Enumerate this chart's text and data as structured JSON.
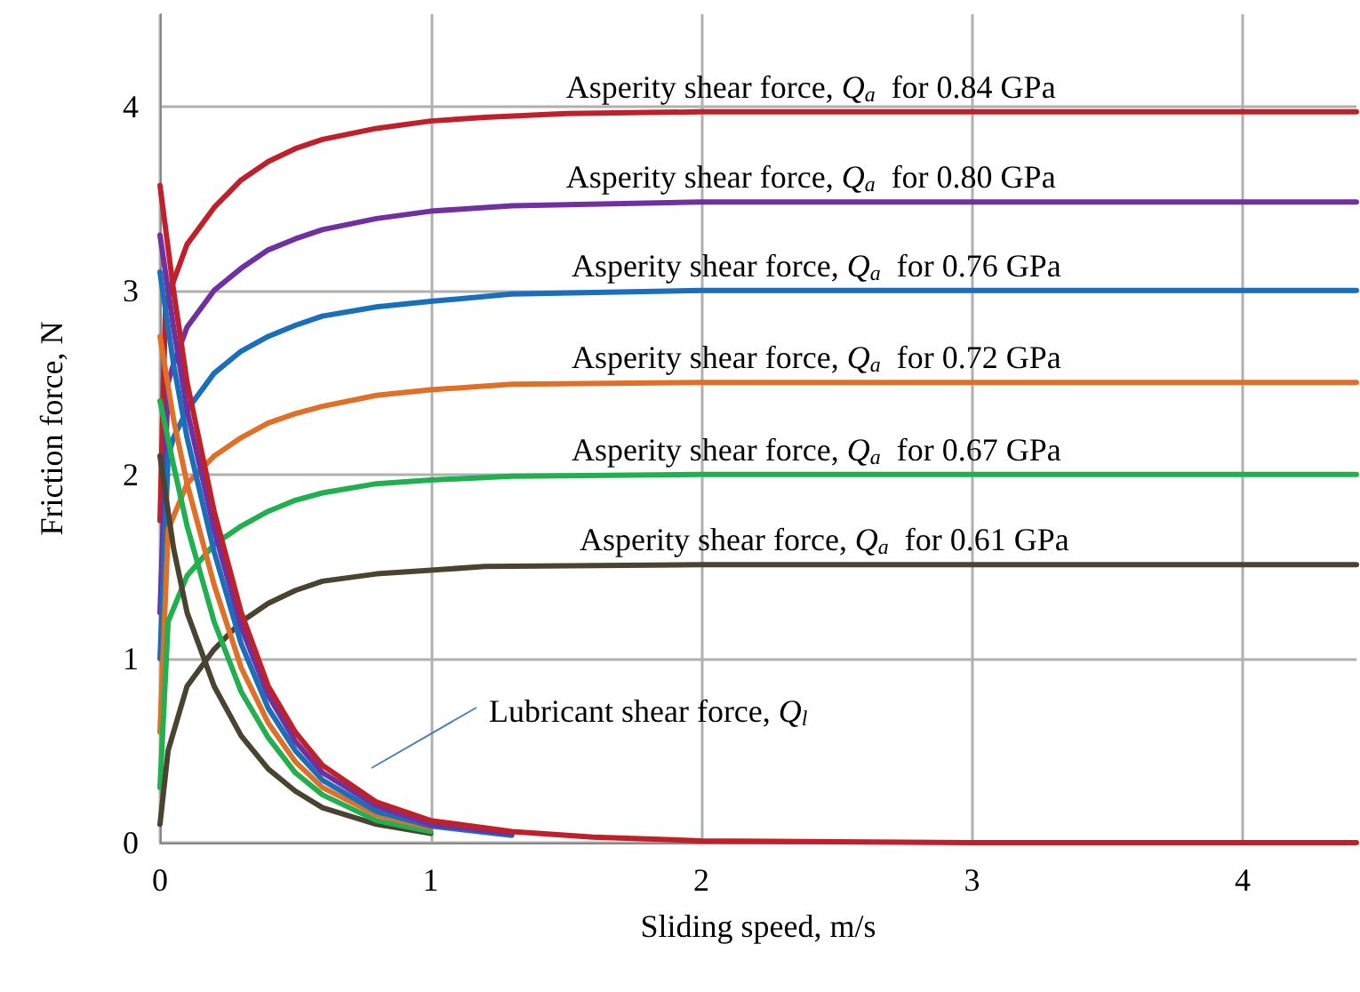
{
  "chart_data": {
    "type": "line",
    "xlabel": "Sliding speed, m/s",
    "ylabel": "Friction force, N",
    "xlim": [
      0,
      4.42
    ],
    "ylim": [
      0,
      4.5
    ],
    "xticks": [
      0,
      1,
      2,
      3,
      4
    ],
    "yticks": [
      0,
      1,
      2,
      3,
      4
    ],
    "grid": true,
    "marker": "none",
    "line_style": "solid",
    "series": [
      {
        "color": "#c0202a",
        "x": [
          0,
          0.02,
          0.05,
          0.1,
          0.2,
          0.3,
          0.4,
          0.5,
          0.6,
          0.8,
          1.0,
          1.2,
          1.5,
          2,
          3,
          4.42
        ],
        "values": [
          1.75,
          2.9,
          3.05,
          3.25,
          3.45,
          3.6,
          3.7,
          3.77,
          3.82,
          3.88,
          3.92,
          3.94,
          3.96,
          3.97,
          3.97,
          3.97
        ]
      },
      {
        "color": "#7030a0",
        "x": [
          0,
          0.03,
          0.05,
          0.1,
          0.2,
          0.3,
          0.4,
          0.5,
          0.6,
          0.8,
          1.0,
          1.3,
          2,
          4.42
        ],
        "values": [
          1.25,
          2.5,
          2.6,
          2.8,
          3.0,
          3.12,
          3.22,
          3.28,
          3.33,
          3.39,
          3.43,
          3.46,
          3.48,
          3.48
        ]
      },
      {
        "color": "#1a6fba",
        "x": [
          0,
          0.03,
          0.05,
          0.1,
          0.2,
          0.3,
          0.4,
          0.5,
          0.6,
          0.8,
          1.0,
          1.3,
          2,
          4.42
        ],
        "values": [
          1.0,
          2.1,
          2.2,
          2.35,
          2.55,
          2.67,
          2.75,
          2.81,
          2.86,
          2.91,
          2.94,
          2.98,
          3.0,
          3.0
        ]
      },
      {
        "color": "#e07028",
        "x": [
          0,
          0.03,
          0.1,
          0.2,
          0.3,
          0.4,
          0.5,
          0.6,
          0.8,
          1.0,
          1.3,
          2,
          4.42
        ],
        "values": [
          0.6,
          1.7,
          1.95,
          2.1,
          2.2,
          2.28,
          2.33,
          2.37,
          2.43,
          2.46,
          2.49,
          2.5,
          2.5
        ]
      },
      {
        "color": "#20b050",
        "x": [
          0,
          0.03,
          0.1,
          0.2,
          0.3,
          0.4,
          0.5,
          0.6,
          0.8,
          1.0,
          1.3,
          2,
          4.42
        ],
        "values": [
          0.3,
          1.2,
          1.45,
          1.62,
          1.72,
          1.8,
          1.86,
          1.9,
          1.95,
          1.97,
          1.99,
          2.0,
          2.0
        ]
      },
      {
        "color": "#4a4330",
        "x": [
          0,
          0.03,
          0.1,
          0.2,
          0.3,
          0.4,
          0.5,
          0.6,
          0.8,
          1.0,
          1.2,
          2,
          4.42
        ],
        "values": [
          0.1,
          0.5,
          0.85,
          1.05,
          1.2,
          1.3,
          1.37,
          1.42,
          1.46,
          1.48,
          1.5,
          1.51,
          1.51
        ]
      },
      {
        "color": "#c0202a",
        "x": [
          0,
          0.05,
          0.1,
          0.2,
          0.3,
          0.4,
          0.5,
          0.6,
          0.8,
          1.0,
          1.3,
          1.6,
          2,
          3,
          4.42
        ],
        "values": [
          3.57,
          3.0,
          2.5,
          1.8,
          1.25,
          0.85,
          0.6,
          0.42,
          0.22,
          0.12,
          0.06,
          0.03,
          0.01,
          0,
          0
        ]
      },
      {
        "color": "#7030a0",
        "x": [
          0,
          0.05,
          0.1,
          0.2,
          0.3,
          0.4,
          0.5,
          0.6,
          0.8,
          1.0,
          1.3
        ],
        "values": [
          3.3,
          2.8,
          2.35,
          1.7,
          1.17,
          0.8,
          0.55,
          0.38,
          0.2,
          0.1,
          0.05
        ]
      },
      {
        "color": "#1a6fba",
        "x": [
          0,
          0.05,
          0.1,
          0.2,
          0.3,
          0.4,
          0.5,
          0.6,
          0.8,
          1.0,
          1.3
        ],
        "values": [
          3.1,
          2.6,
          2.2,
          1.58,
          1.08,
          0.73,
          0.5,
          0.34,
          0.17,
          0.09,
          0.04
        ]
      },
      {
        "color": "#e07028",
        "x": [
          0,
          0.05,
          0.1,
          0.2,
          0.3,
          0.4,
          0.5,
          0.6,
          0.8,
          1.0
        ],
        "values": [
          2.75,
          2.3,
          1.95,
          1.4,
          0.95,
          0.65,
          0.44,
          0.3,
          0.15,
          0.08
        ]
      },
      {
        "color": "#20b050",
        "x": [
          0,
          0.05,
          0.1,
          0.2,
          0.3,
          0.4,
          0.5,
          0.6,
          0.8,
          1.0
        ],
        "values": [
          2.4,
          2.05,
          1.72,
          1.2,
          0.82,
          0.57,
          0.38,
          0.26,
          0.12,
          0.06
        ]
      },
      {
        "color": "#4a4330",
        "x": [
          0,
          0.05,
          0.1,
          0.2,
          0.3,
          0.4,
          0.5,
          0.6,
          0.8,
          1.0
        ],
        "values": [
          2.1,
          1.6,
          1.25,
          0.85,
          0.58,
          0.4,
          0.28,
          0.19,
          0.1,
          0.05
        ]
      }
    ],
    "annotations": [
      {
        "text": "Asperity shear force, Q$_{a}$  for 0.84 GPa",
        "x": 1.5,
        "y": 3.97
      },
      {
        "text": "Asperity shear force, Q$_{a}$  for 0.80 GPa",
        "x": 1.5,
        "y": 3.48
      },
      {
        "text": "Asperity shear force, Q$_{a}$  for 0.76 GPa",
        "x": 1.52,
        "y": 3.0
      },
      {
        "text": "Asperity shear force, Q$_{a}$  for 0.72 GPa",
        "x": 1.52,
        "y": 2.5
      },
      {
        "text": "Asperity shear force, Q$_{a}$  for 0.67 GPa",
        "x": 1.52,
        "y": 2.0
      },
      {
        "text": "Asperity shear force, Q$_{a}$  for 0.61 GPa",
        "x": 1.55,
        "y": 1.51
      },
      "Lubricant shear force, Q$_{l}$"
    ]
  }
}
